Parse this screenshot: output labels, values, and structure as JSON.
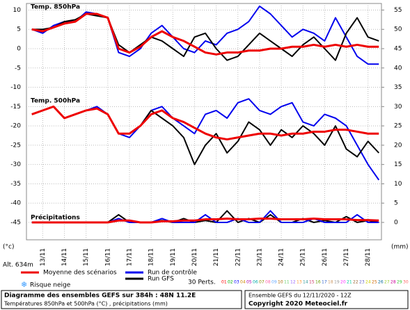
{
  "chart_data": {
    "type": "line",
    "titles": [
      "Temp. 850hPa",
      "Temp. 500hPa",
      "Précipitations"
    ],
    "y_unit": "(°c)",
    "y2_unit": "(mm)",
    "altitude": "Alt. 634m",
    "x": [
      12.5,
      13,
      13.5,
      14,
      14.5,
      15,
      15.5,
      16,
      16.5,
      17,
      17.5,
      18,
      18.5,
      19,
      19.5,
      20,
      20.5,
      21,
      21.5,
      22,
      22.5,
      23,
      23.5,
      24,
      24.5,
      25,
      25.5,
      26,
      26.5,
      27,
      27.5,
      28,
      28.5
    ],
    "xlim": [
      12.25,
      28.62
    ],
    "xticks": [
      {
        "value": 13,
        "label": "13/11"
      },
      {
        "value": 14,
        "label": "14/11"
      },
      {
        "value": 15,
        "label": "15/11"
      },
      {
        "value": 16,
        "label": "16/11"
      },
      {
        "value": 17,
        "label": "17/11"
      },
      {
        "value": 18,
        "label": "18/11"
      },
      {
        "value": 19,
        "label": "19/11"
      },
      {
        "value": 20,
        "label": "20/11"
      },
      {
        "value": 21,
        "label": "21/11"
      },
      {
        "value": 22,
        "label": "22/11"
      },
      {
        "value": 23,
        "label": "23/11"
      },
      {
        "value": 24,
        "label": "24/11"
      },
      {
        "value": 25,
        "label": "25/11"
      },
      {
        "value": 26,
        "label": "26/11"
      },
      {
        "value": 27,
        "label": "27/11"
      },
      {
        "value": 28,
        "label": "28/11"
      }
    ],
    "ylim": [
      -49.5,
      11.7
    ],
    "yticks": [
      -45,
      -40,
      -35,
      -30,
      -25,
      -20,
      -15,
      -10,
      -5,
      0,
      5,
      10
    ],
    "y2lim": [
      -4.5,
      56.7
    ],
    "y2ticks": [
      0,
      5,
      10,
      15,
      20,
      25,
      30,
      35,
      40,
      45,
      50,
      55
    ],
    "grid": true,
    "series": [
      {
        "color": "#0000ee",
        "width": 2,
        "values": [
          5,
          4,
          6,
          7,
          7,
          9.5,
          9,
          8,
          -1,
          -2,
          0,
          4,
          6,
          3,
          0,
          -1,
          2,
          1,
          4,
          5,
          7,
          11,
          9,
          6,
          3,
          5,
          4,
          2,
          8,
          3,
          -2,
          -4,
          -4
        ]
      },
      {
        "color": "#000000",
        "width": 2,
        "values": [
          5,
          5,
          5.5,
          7,
          7.5,
          9,
          8.5,
          8,
          1,
          -1,
          1,
          3,
          2,
          0,
          -2,
          3,
          4,
          0,
          -3,
          -2,
          1,
          4,
          2,
          0,
          -2,
          1,
          3,
          0,
          -3,
          4,
          8,
          3,
          2
        ]
      },
      {
        "color": "#ee0000",
        "width": 3,
        "values": [
          5,
          4.5,
          5.5,
          6.5,
          7,
          9,
          9,
          8,
          0,
          -1,
          0.5,
          3,
          4.5,
          3,
          2,
          0.5,
          -1,
          -1.5,
          -1,
          -1,
          -0.5,
          -0.5,
          0,
          0,
          0.5,
          0.5,
          1,
          0.5,
          1,
          0.5,
          1,
          0.5,
          0.5
        ]
      },
      {
        "color": "#0000ee",
        "width": 2,
        "values": [
          -17,
          -16,
          -15,
          -18,
          -17,
          -16,
          -15,
          -17,
          -22,
          -23,
          -20,
          -16,
          -15,
          -18,
          -20,
          -22,
          -17,
          -16,
          -18,
          -14,
          -13,
          -16,
          -17,
          -15,
          -14,
          -19,
          -20,
          -17,
          -18,
          -20,
          -25,
          -30,
          -34
        ]
      },
      {
        "color": "#000000",
        "width": 2,
        "values": [
          -17,
          -16,
          -15,
          -18,
          -17,
          -16,
          -15.5,
          -17,
          -22,
          -22,
          -20,
          -16,
          -18,
          -20,
          -23,
          -30,
          -25,
          -22,
          -27,
          -24,
          -19,
          -21,
          -25,
          -21,
          -23,
          -20,
          -22,
          -25,
          -20,
          -26,
          -28,
          -24,
          -27
        ]
      },
      {
        "color": "#ee0000",
        "width": 3,
        "values": [
          -17,
          -16,
          -15,
          -18,
          -17,
          -16,
          -15.5,
          -17,
          -22,
          -22,
          -20,
          -17,
          -16,
          -18,
          -19,
          -20.5,
          -22,
          -23,
          -23.5,
          -23,
          -22.5,
          -22,
          -22,
          -22.5,
          -22,
          -22,
          -21.5,
          -21.5,
          -21,
          -21,
          -21.5,
          -22,
          -22
        ]
      },
      {
        "color": "#000000",
        "width": 2,
        "axis": "y2",
        "values": [
          0,
          0,
          0,
          0,
          0,
          0,
          0,
          0,
          2,
          0,
          0,
          0,
          0.5,
          0,
          1,
          0,
          0.5,
          0,
          3,
          0,
          1,
          0,
          2,
          0,
          0,
          1,
          0,
          0.5,
          0,
          1.5,
          0,
          0.5,
          0
        ]
      },
      {
        "color": "#0000ee",
        "width": 2,
        "axis": "y2",
        "values": [
          0,
          0,
          0,
          0,
          0,
          0,
          0,
          0,
          1,
          0,
          0,
          0,
          1,
          0,
          0,
          0,
          2,
          0,
          0,
          1,
          0,
          0,
          3,
          0,
          0,
          0,
          1,
          0,
          0,
          0,
          2,
          0,
          0
        ]
      },
      {
        "color": "#ee0000",
        "width": 3,
        "axis": "y2",
        "values": [
          0,
          0,
          0,
          0,
          0,
          0,
          0,
          0,
          0.5,
          0.5,
          0,
          0,
          0.3,
          0.3,
          0.5,
          0.5,
          0.8,
          0.8,
          1,
          0.8,
          0.8,
          1,
          1,
          0.8,
          0.8,
          0.8,
          1,
          0.8,
          0.8,
          0.8,
          0.6,
          0.6,
          0.5
        ]
      }
    ],
    "legend": [
      {
        "label": "Moyenne des scénarios",
        "color": "#ee0000"
      },
      {
        "label": "Run de contrôle",
        "color": "#0000ee"
      },
      {
        "label": "Run GFS",
        "color": "#000000"
      }
    ],
    "perts_label": "30 Perts.",
    "snow_label": "Risque neige",
    "members": [
      {
        "name": "01",
        "color": "#ff0000"
      },
      {
        "name": "02",
        "color": "#00aa00"
      },
      {
        "name": "03",
        "color": "#0000ff"
      },
      {
        "name": "04",
        "color": "#cc8800"
      },
      {
        "name": "05",
        "color": "#aa00aa"
      },
      {
        "name": "06",
        "color": "#00aaaa"
      },
      {
        "name": "07",
        "color": "#888800"
      },
      {
        "name": "08",
        "color": "#ff66aa"
      },
      {
        "name": "09",
        "color": "#66aaff"
      },
      {
        "name": "10",
        "color": "#aa6600"
      },
      {
        "name": "11",
        "color": "#66cc66"
      },
      {
        "name": "12",
        "color": "#9966ff"
      },
      {
        "name": "13",
        "color": "#ff9933"
      },
      {
        "name": "14",
        "color": "#339999"
      },
      {
        "name": "15",
        "color": "#cc3366"
      },
      {
        "name": "16",
        "color": "#669900"
      },
      {
        "name": "17",
        "color": "#3366cc"
      },
      {
        "name": "18",
        "color": "#cc9966"
      },
      {
        "name": "19",
        "color": "#999999"
      },
      {
        "name": "20",
        "color": "#ff33ff"
      },
      {
        "name": "21",
        "color": "#00cc99"
      },
      {
        "name": "22",
        "color": "#996633"
      },
      {
        "name": "23",
        "color": "#6666cc"
      },
      {
        "name": "24",
        "color": "#cccc00"
      },
      {
        "name": "25",
        "color": "#cc6600"
      },
      {
        "name": "26",
        "color": "#006699"
      },
      {
        "name": "27",
        "color": "#99cc33"
      },
      {
        "name": "28",
        "color": "#cc0099"
      },
      {
        "name": "29",
        "color": "#33cc33"
      },
      {
        "name": "30",
        "color": "#ff6666"
      }
    ],
    "footer": {
      "title": "Diagramme des ensembles GEFS sur 384h : 48N 11.2E",
      "subtitle": "Températures 850hPa et 500hPa (°C) , précipitations (mm)",
      "run": "Ensemble GEFS du 12/11/2020 - 12Z",
      "copyright": "Copyright 2020 Meteociel.fr"
    }
  }
}
